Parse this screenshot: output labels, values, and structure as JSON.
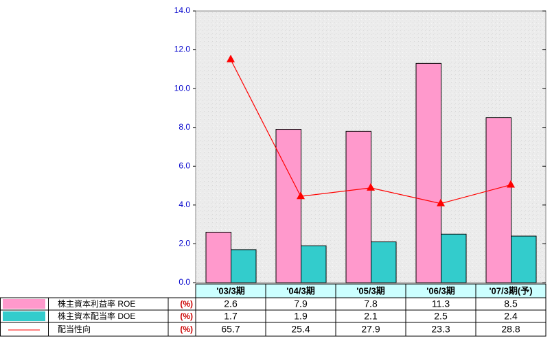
{
  "chart_data": {
    "type": "bar",
    "categories": [
      "'03/3期",
      "'04/3期",
      "'05/3期",
      "'06/3期",
      "'07/3期(予)"
    ],
    "series": [
      {
        "name": "株主資本利益率 ROE",
        "unit": "(%)",
        "color": "#ff99cc",
        "values": [
          2.6,
          7.9,
          7.8,
          11.3,
          8.5
        ]
      },
      {
        "name": "株主資本配当率 DOE",
        "unit": "(%)",
        "color": "#33cccc",
        "values": [
          1.7,
          1.9,
          2.1,
          2.5,
          2.4
        ]
      },
      {
        "name": "配当性向",
        "unit": "(%)",
        "color": "#ff0000",
        "type": "line",
        "axis": "y2",
        "values": [
          65.7,
          25.4,
          27.9,
          23.3,
          28.8
        ]
      }
    ],
    "ylim": [
      0,
      14
    ],
    "yticks": [
      {
        "value": 0,
        "label": "0.0"
      },
      {
        "value": 2,
        "label": "2.0"
      },
      {
        "value": 4,
        "label": "4.0"
      },
      {
        "value": 6,
        "label": "6.0"
      },
      {
        "value": 8,
        "label": "8.0"
      },
      {
        "value": 10,
        "label": "10.0"
      },
      {
        "value": 12,
        "label": "12.0"
      },
      {
        "value": 14,
        "label": "14.0"
      }
    ],
    "y2lim": [
      0,
      80
    ],
    "grid": false
  }
}
